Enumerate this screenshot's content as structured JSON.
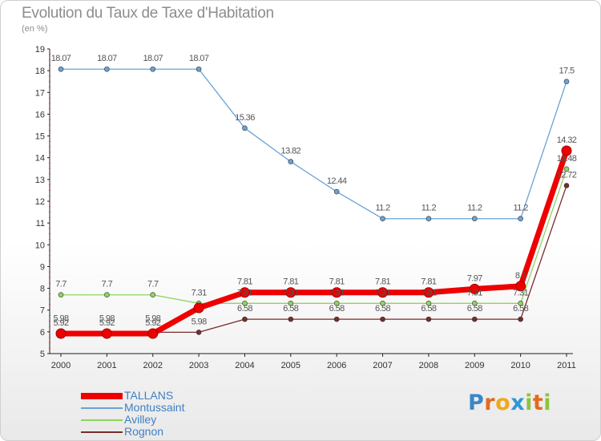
{
  "header": {
    "title": "Evolution du Taux de Taxe d'Habitation",
    "subtitle": "(en %)"
  },
  "brand": {
    "letters": [
      "P",
      "r",
      "o",
      "x",
      "i",
      "t",
      "i"
    ],
    "colors": [
      "#3a87c8",
      "#e36b1f",
      "#f0a81b",
      "#2f98d4",
      "#8cc43c",
      "#e36b1f",
      "#8cc43c"
    ]
  },
  "chart_data": {
    "type": "line",
    "title": "Evolution du Taux de Taxe d'Habitation",
    "ylabel": "(en %)",
    "xlabel": "",
    "categories": [
      "2000",
      "2001",
      "2002",
      "2003",
      "2004",
      "2005",
      "2006",
      "2007",
      "2008",
      "2009",
      "2010",
      "2011"
    ],
    "ylim": [
      5,
      19
    ],
    "yticks": [
      "5",
      "6",
      "7",
      "8",
      "9",
      "10",
      "11",
      "12",
      "13",
      "14",
      "15",
      "16",
      "17",
      "18",
      "19"
    ],
    "grid": false,
    "legend_position": "bottom-left",
    "series": [
      {
        "name": "TALLANS",
        "color": "#ee0000",
        "values": [
          5.92,
          5.92,
          5.92,
          7.1,
          7.81,
          7.81,
          7.81,
          7.81,
          7.81,
          7.97,
          8.1,
          14.32
        ],
        "labels": [
          "5.92",
          "5.92",
          "5.92",
          "",
          "7.81",
          "7.81",
          "7.81",
          "7.81",
          "7.81",
          "7.97",
          "8.1",
          "14.32"
        ]
      },
      {
        "name": "Montussaint",
        "color": "#6aa2d6",
        "values": [
          18.07,
          18.07,
          18.07,
          18.07,
          15.36,
          13.82,
          12.44,
          11.2,
          11.2,
          11.2,
          11.2,
          17.5
        ],
        "labels": [
          "18.07",
          "18.07",
          "18.07",
          "18.07",
          "15.36",
          "13.82",
          "12.44",
          "11.2",
          "11.2",
          "11.2",
          "11.2",
          "17.5"
        ]
      },
      {
        "name": "Avilley",
        "color": "#8fd45e",
        "values": [
          7.7,
          7.7,
          7.7,
          7.31,
          7.31,
          7.31,
          7.31,
          7.31,
          7.31,
          7.31,
          7.31,
          13.48
        ],
        "labels": [
          "7.7",
          "7.7",
          "7.7",
          "7.31",
          "7.31",
          "7.31",
          "7.31",
          "7.31",
          "7.31",
          "7.31",
          "7.31",
          "13.48"
        ]
      },
      {
        "name": "Rognon",
        "color": "#7a2b2b",
        "values": [
          5.98,
          5.98,
          5.98,
          5.98,
          6.58,
          6.58,
          6.58,
          6.58,
          6.58,
          6.58,
          6.58,
          12.72
        ],
        "labels": [
          "5.98",
          "5.98",
          "5.98",
          "5.98",
          "6.58",
          "6.58",
          "6.58",
          "6.58",
          "6.58",
          "6.58",
          "6.58",
          "12.72"
        ]
      }
    ]
  }
}
